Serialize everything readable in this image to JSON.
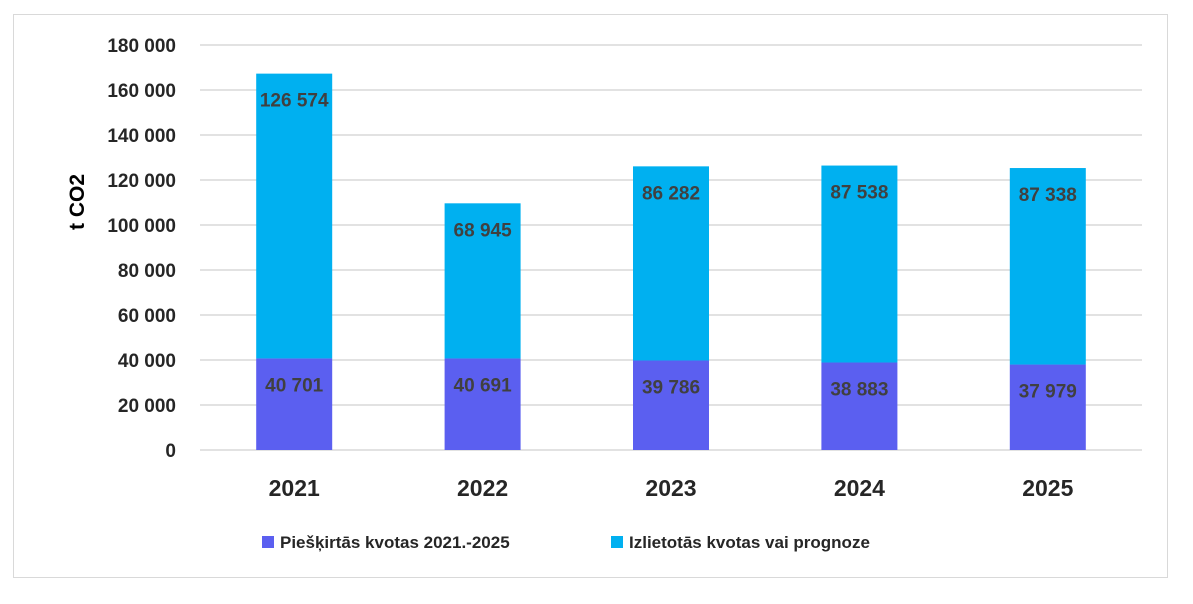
{
  "chart_data": {
    "type": "bar",
    "stacked": true,
    "categories": [
      "2021",
      "2022",
      "2023",
      "2024",
      "2025"
    ],
    "series": [
      {
        "name": "Piešķirtās kvotas 2021.-2025",
        "values": [
          40701,
          40691,
          39786,
          38883,
          37979
        ],
        "labels": [
          "40 701",
          "40 691",
          "39 786",
          "38 883",
          "37 979"
        ],
        "color": "#5b5ff0"
      },
      {
        "name": "Izlietotās kvotas vai prognoze",
        "values": [
          126574,
          68945,
          86282,
          87538,
          87338
        ],
        "labels": [
          "126 574",
          "68 945",
          "86 282",
          "87 538",
          "87 338"
        ],
        "color": "#00b0f0"
      }
    ],
    "ylabel": "t CO2",
    "xlabel": "",
    "ylim": [
      0,
      180000
    ],
    "yticks": [
      0,
      20000,
      40000,
      60000,
      80000,
      100000,
      120000,
      140000,
      160000,
      180000
    ],
    "ytick_labels": [
      "0",
      "20 000",
      "40 000",
      "60 000",
      "80 000",
      "100 000",
      "120 000",
      "140 000",
      "160 000",
      "180 000"
    ],
    "grid": true,
    "gridline_color": "#d9d9d9",
    "legend_position": "bottom"
  }
}
